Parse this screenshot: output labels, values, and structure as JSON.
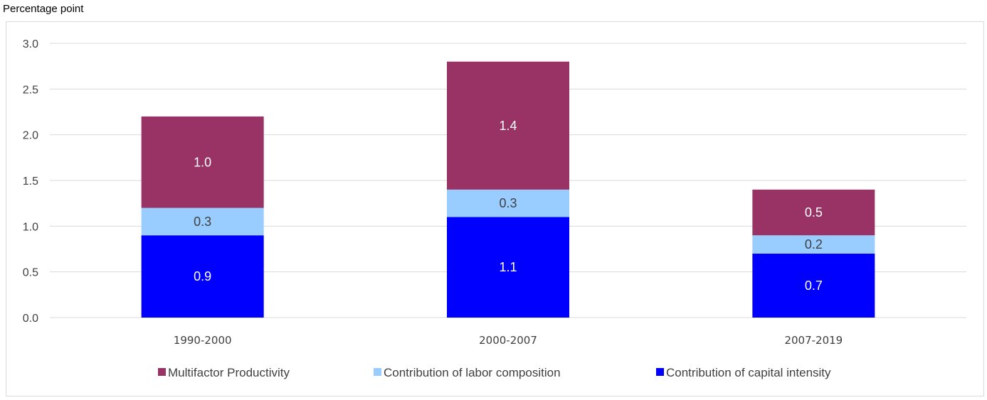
{
  "chart_data": {
    "type": "bar",
    "stacked": true,
    "title": "",
    "ylabel": "Percentage point",
    "xlabel": "",
    "ylim": [
      0,
      3.0
    ],
    "yticks": [
      "0.0",
      "0.5",
      "1.0",
      "1.5",
      "2.0",
      "2.5",
      "3.0"
    ],
    "grid": true,
    "legend_position": "bottom",
    "categories": [
      "1990-2000",
      "2000-2007",
      "2007-2019"
    ],
    "series": [
      {
        "name": "Contribution of capital intensity",
        "values": [
          0.9,
          1.1,
          0.7
        ],
        "labels": [
          "0.9",
          "1.1",
          "0.7"
        ],
        "color": "#0000ff",
        "label_color": "#ffffff"
      },
      {
        "name": "Contribution of labor composition",
        "values": [
          0.3,
          0.3,
          0.2
        ],
        "labels": [
          "0.3",
          "0.3",
          "0.2"
        ],
        "color": "#99ccff",
        "label_color": "#404040"
      },
      {
        "name": "Multifactor Productivity",
        "values": [
          1.0,
          1.4,
          0.5
        ],
        "labels": [
          "1.0",
          "1.4",
          "0.5"
        ],
        "color": "#993366",
        "label_color": "#ffffff"
      }
    ],
    "legend_order": [
      "Multifactor Productivity",
      "Contribution of labor composition",
      "Contribution of capital intensity"
    ]
  }
}
